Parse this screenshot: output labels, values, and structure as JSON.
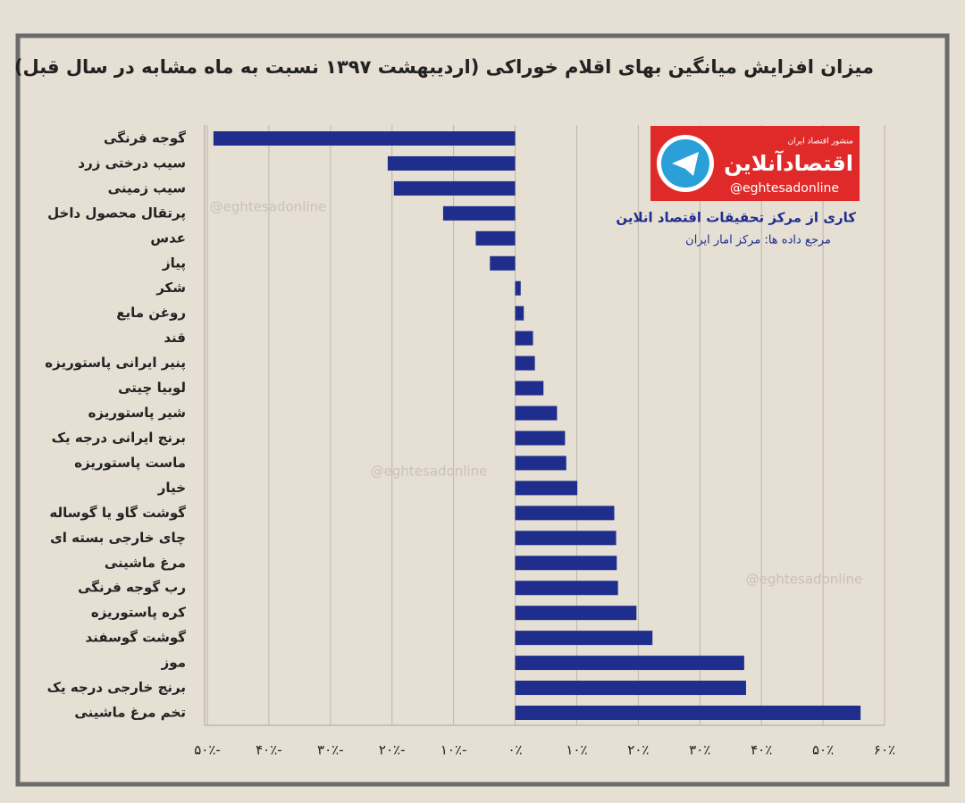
{
  "chart_data": {
    "type": "barh",
    "title": "میزان افزایش میانگین بهای اقلام خوراکی (اردیبهشت ۱۳۹۷ نسبت به ماه مشابه در سال قبل)",
    "categories": [
      "گوجه فرنگی",
      "سیب درختی زرد",
      "سیب زمینی",
      "پرتقال محصول داخل",
      "عدس",
      "پیاز",
      "شکر",
      "روغن مایع",
      "قند",
      "پنیر ایرانی پاستوریزه",
      "لوبیا چیتی",
      "شیر پاستوریزه",
      "برنج ایرانی درجه یک",
      "ماست پاستوریزه",
      "خیار",
      "گوشت گاو یا گوساله",
      "چای خارجی بسته ای",
      "مرغ ماشینی",
      "رب گوجه فرنگی",
      "کره پاستوریزه",
      "گوشت گوسفند",
      "موز",
      "برنج خارجی درجه یک",
      "تخم مرغ ماشینی"
    ],
    "values": [
      -49.0,
      -20.7,
      -19.7,
      -11.7,
      -6.4,
      -4.1,
      0.9,
      1.4,
      2.9,
      3.2,
      4.6,
      6.8,
      8.1,
      8.3,
      10.1,
      16.1,
      16.4,
      16.5,
      16.7,
      19.7,
      22.3,
      37.2,
      37.5,
      56.1
    ],
    "color": "#1f2e8c",
    "xlim": [
      -50,
      60
    ],
    "xticks": [
      {
        "value": -50,
        "label": "-۵۰٪"
      },
      {
        "value": -40,
        "label": "-۴۰٪"
      },
      {
        "value": -30,
        "label": "-۳۰٪"
      },
      {
        "value": -20,
        "label": "-۲۰٪"
      },
      {
        "value": -10,
        "label": "-۱۰٪"
      },
      {
        "value": 0,
        "label": "۰٪"
      },
      {
        "value": 10,
        "label": "۱۰٪"
      },
      {
        "value": 20,
        "label": "۲۰٪"
      },
      {
        "value": 30,
        "label": "۳۰٪"
      },
      {
        "value": 40,
        "label": "۴۰٪"
      },
      {
        "value": 50,
        "label": "۵۰٪"
      },
      {
        "value": 60,
        "label": "۶۰٪"
      }
    ],
    "grid": true,
    "logo_tagline": "منشور اقتصاد ایران",
    "logo_name": "اقتصادآنلاین",
    "logo_handle": "@eghtesadonline",
    "credit": "کاری از مرکز تحقیقات اقتصاد انلاین",
    "source": "مرجع داده ها: مرکز امار ایران",
    "watermarks": [
      "@eghtesadonline",
      "@eghtesadonline",
      "@eghtesadonline"
    ]
  }
}
